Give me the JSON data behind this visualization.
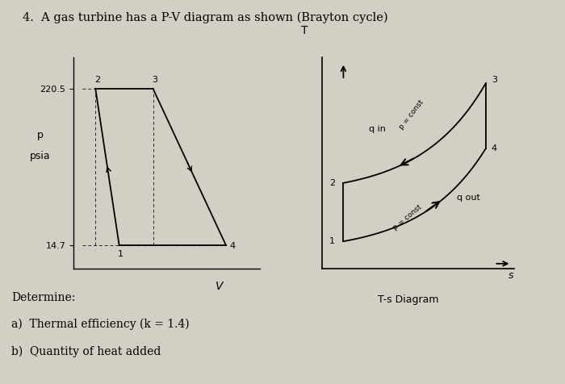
{
  "title": "4.  A gas turbine has a P-V diagram as shown (Brayton cycle)",
  "title_fontsize": 10.5,
  "background_color": "#c8bfaf",
  "page_background": "#d4cfc5",
  "pv": {
    "p1": [
      0.22,
      0.0
    ],
    "p2": [
      0.08,
      1.0
    ],
    "p3": [
      0.42,
      1.0
    ],
    "p4": [
      0.85,
      0.0
    ],
    "p_high_label": "220.5",
    "p_low_label": "14.7",
    "ylabel1": "p",
    "ylabel2": "psia",
    "xlabel": "V"
  },
  "ts": {
    "q1": [
      0.0,
      0.08
    ],
    "q2": [
      0.0,
      0.42
    ],
    "q3": [
      1.0,
      1.0
    ],
    "q4": [
      1.0,
      0.62
    ],
    "ylabel": "T",
    "xlabel": "s",
    "title": "T-s Diagram",
    "q_in_label": "q in",
    "q_out_label": "q out",
    "p_const_high": "p = const",
    "p_const_low": "p = const"
  },
  "determine": [
    "Determine:",
    "a)  Thermal efficiency (k = 1.4)",
    "b)  Quantity of heat added"
  ]
}
